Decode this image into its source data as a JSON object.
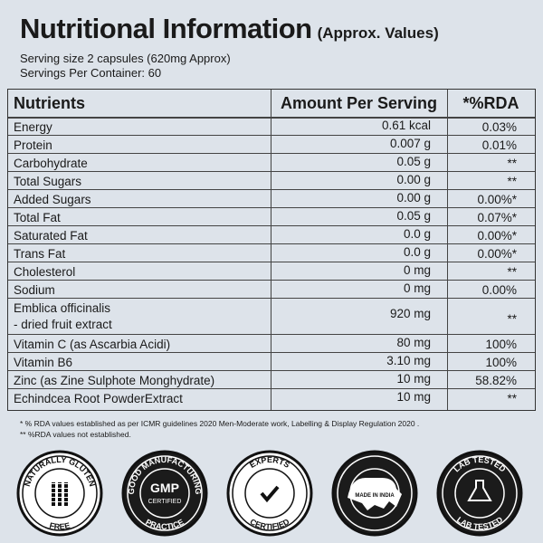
{
  "header": {
    "title": "Nutritional Information",
    "subtitle": "(Approx. Values)",
    "serving_size": "Serving size 2 capsules (620mg Approx)",
    "servings": "Servings Per Container: 60"
  },
  "table": {
    "columns": [
      "Nutrients",
      "Amount Per Serving",
      "*%RDA"
    ],
    "rows": [
      {
        "nutrient": "Energy",
        "amount": "0.61 kcal",
        "rda": "0.03%"
      },
      {
        "nutrient": "Protein",
        "amount": "0.007 g",
        "rda": "0.01%"
      },
      {
        "nutrient": "Carbohydrate",
        "amount": "0.05 g",
        "rda": "**"
      },
      {
        "nutrient": "Total Sugars",
        "amount": "0.00 g",
        "rda": "**"
      },
      {
        "nutrient": "Added Sugars",
        "amount": "0.00 g",
        "rda": "0.00%*"
      },
      {
        "nutrient": "Total Fat",
        "amount": "0.05 g",
        "rda": "0.07%*"
      },
      {
        "nutrient": "Saturated Fat",
        "amount": "0.0 g",
        "rda": "0.00%*"
      },
      {
        "nutrient": "Trans Fat",
        "amount": "0.0 g",
        "rda": "0.00%*"
      },
      {
        "nutrient": "Cholesterol",
        "amount": "0 mg",
        "rda": "**"
      },
      {
        "nutrient": "Sodium",
        "amount": "0 mg",
        "rda": "0.00%"
      },
      {
        "nutrient": "Emblica officinalis",
        "note": "- dried fruit extract",
        "amount": "920 mg",
        "rda": "**"
      },
      {
        "nutrient": "Vitamin C (as Ascarbia Acidi)",
        "amount": "80 mg",
        "rda": "100%"
      },
      {
        "nutrient": "Vitamin B6",
        "amount": "3.10 mg",
        "rda": "100%"
      },
      {
        "nutrient": "Zinc (as Zine Sulphote Monghydrate)",
        "amount": "10 mg",
        "rda": "58.82%"
      },
      {
        "nutrient": "Echindcea Root PowderExtract",
        "amount": "10 mg",
        "rda": "**"
      }
    ]
  },
  "footnotes": [
    "* % RDA values established as per ICMR guidelines 2020 Men-Moderate work, Labelling & Display Regulation 2020 .",
    "** %RDA values not established."
  ],
  "badges": [
    {
      "top": "NATURALLY GLUTEN",
      "bottom": "FREE"
    },
    {
      "top": "GOOD MANUFACTURING",
      "bottom": "PRACTICE",
      "center": "GMP",
      "center2": "CERTIFIED"
    },
    {
      "top": "EXPERTS",
      "bottom": "CERTIFIED"
    },
    {
      "center": "MADE IN INDIA"
    },
    {
      "top": "LAB TESTED",
      "bottom": "LAB TESTED"
    }
  ]
}
